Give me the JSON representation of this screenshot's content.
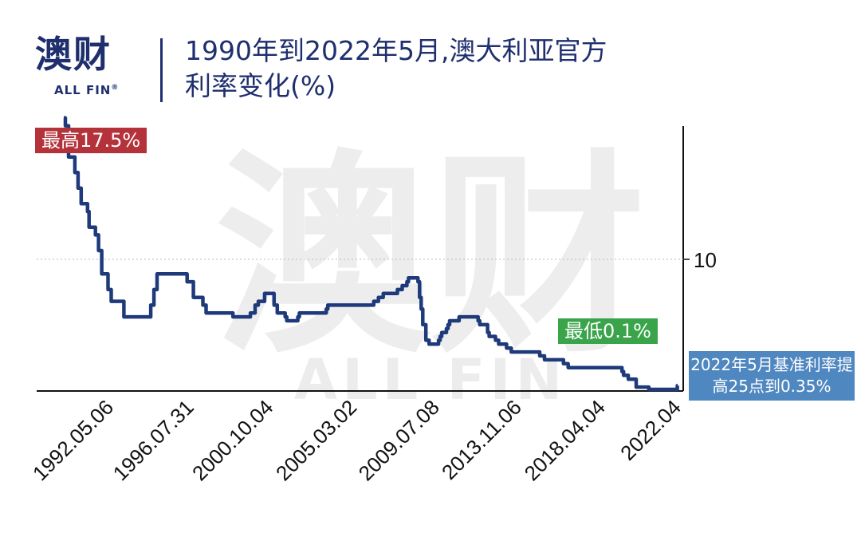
{
  "brand": {
    "name": "澳财",
    "sub": "ALL FIN",
    "reg": "®"
  },
  "title": {
    "line1": "1990年到2022年5月,澳大利亚官方",
    "line2": "利率变化(%)"
  },
  "annotations": {
    "max": "最高17.5%",
    "min": "最低0.1%",
    "latest": "2022年5月基准利率提高25点到0.35%"
  },
  "colors": {
    "line": "#1f3a7a",
    "title": "#1f2f6e",
    "max_box": "#b4323a",
    "min_box": "#3aa44a",
    "latest_box": "#4f87c0",
    "watermark": "#ececec"
  },
  "chart_data": {
    "type": "line",
    "title": "1990年到2022年5月,澳大利亚官方利率变化(%)",
    "xlabel": "",
    "ylabel": "",
    "x_tick_labels": [
      "1992.05.06",
      "1996.07.31",
      "2000.10.04",
      "2005.03.02",
      "2009.07.08",
      "2013.11.06",
      "2018.04.04",
      "2022.04"
    ],
    "y_tick_labels": [
      "10"
    ],
    "ylim": [
      0,
      18
    ],
    "grid": "dotted line at 10",
    "series": [
      {
        "values": [
          [
            "1990.01",
            17.5
          ],
          [
            "1990.02",
            17.0
          ],
          [
            "1990.04",
            15.0
          ],
          [
            "1990.08",
            14.0
          ],
          [
            "1990.10",
            13.0
          ],
          [
            "1990.12",
            12.0
          ],
          [
            "1991.04",
            11.5
          ],
          [
            "1991.05",
            10.5
          ],
          [
            "1991.09",
            10.0
          ],
          [
            "1991.11",
            9.0
          ],
          [
            "1992.01",
            7.5
          ],
          [
            "1992.05",
            6.5
          ],
          [
            "1992.07",
            5.75
          ],
          [
            "1993.03",
            4.75
          ],
          [
            "1994.08",
            5.5
          ],
          [
            "1994.10",
            6.5
          ],
          [
            "1994.12",
            7.5
          ],
          [
            "1996.07",
            7.0
          ],
          [
            "1996.11",
            6.0
          ],
          [
            "1997.05",
            5.5
          ],
          [
            "1997.07",
            5.0
          ],
          [
            "1998.12",
            4.75
          ],
          [
            "1999.11",
            5.0
          ],
          [
            "2000.02",
            5.5
          ],
          [
            "2000.04",
            5.75
          ],
          [
            "2000.08",
            6.25
          ],
          [
            "2001.02",
            5.5
          ],
          [
            "2001.04",
            5.0
          ],
          [
            "2001.09",
            4.75
          ],
          [
            "2001.10",
            4.5
          ],
          [
            "2002.05",
            4.75
          ],
          [
            "2002.06",
            5.0
          ],
          [
            "2003.11",
            5.25
          ],
          [
            "2003.12",
            5.5
          ],
          [
            "2005.03",
            5.5
          ],
          [
            "2006.05",
            5.75
          ],
          [
            "2006.08",
            6.0
          ],
          [
            "2006.11",
            6.25
          ],
          [
            "2007.08",
            6.5
          ],
          [
            "2007.11",
            6.75
          ],
          [
            "2008.02",
            7.0
          ],
          [
            "2008.03",
            7.25
          ],
          [
            "2008.09",
            7.0
          ],
          [
            "2008.10",
            6.0
          ],
          [
            "2008.11",
            5.25
          ],
          [
            "2008.12",
            4.25
          ],
          [
            "2009.02",
            3.25
          ],
          [
            "2009.04",
            3.0
          ],
          [
            "2009.10",
            3.25
          ],
          [
            "2009.11",
            3.5
          ],
          [
            "2009.12",
            3.75
          ],
          [
            "2010.03",
            4.0
          ],
          [
            "2010.04",
            4.25
          ],
          [
            "2010.05",
            4.5
          ],
          [
            "2010.11",
            4.75
          ],
          [
            "2011.11",
            4.5
          ],
          [
            "2011.12",
            4.25
          ],
          [
            "2012.05",
            3.75
          ],
          [
            "2012.06",
            3.5
          ],
          [
            "2012.10",
            3.25
          ],
          [
            "2012.12",
            3.0
          ],
          [
            "2013.05",
            2.75
          ],
          [
            "2013.08",
            2.5
          ],
          [
            "2015.02",
            2.25
          ],
          [
            "2015.05",
            2.0
          ],
          [
            "2016.05",
            1.75
          ],
          [
            "2016.08",
            1.5
          ],
          [
            "2019.06",
            1.25
          ],
          [
            "2019.07",
            1.0
          ],
          [
            "2019.10",
            0.75
          ],
          [
            "2020.03",
            0.5
          ],
          [
            "2020.03",
            0.25
          ],
          [
            "2020.11",
            0.1
          ],
          [
            "2022.05",
            0.35
          ]
        ]
      }
    ]
  }
}
